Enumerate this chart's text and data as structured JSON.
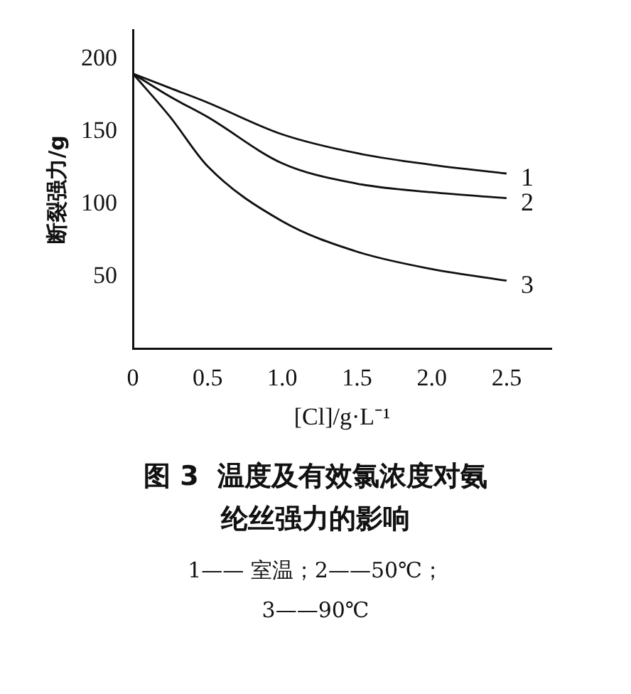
{
  "chart_data": {
    "type": "line",
    "title": "图 3  温度及有效氯浓度对氨纶丝强力的影响",
    "xlabel": "[Cl]/g·L⁻¹",
    "ylabel": "断裂强力/g",
    "x": [
      0,
      0.25,
      0.5,
      1.0,
      1.5,
      2.0,
      2.5
    ],
    "series": [
      {
        "name": "1",
        "color": "#111111",
        "values": [
          190,
          180,
          170,
          148,
          135,
          127,
          121
        ]
      },
      {
        "name": "2",
        "color": "#111111",
        "values": [
          190,
          174,
          160,
          128,
          114,
          108,
          104
        ]
      },
      {
        "name": "3",
        "color": "#111111",
        "values": [
          190,
          160,
          126,
          88,
          67,
          55,
          47
        ]
      }
    ],
    "xlim": [
      0,
      2.8
    ],
    "xticks": [
      0,
      0.5,
      {
        "value": 1,
        "label": "1.0"
      },
      1.5,
      {
        "value": 2,
        "label": "2.0"
      },
      2.5
    ],
    "ylim": [
      0,
      220
    ],
    "yticks": [
      50,
      100,
      150,
      200
    ],
    "grid": false,
    "legend": false,
    "marker": "none",
    "line_style": "solid",
    "annotations": [
      "1—— 室温；2——50℃；",
      "3——90℃"
    ]
  }
}
